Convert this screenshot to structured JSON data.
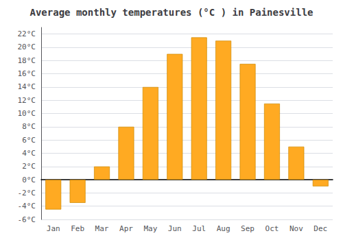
{
  "chart_data": {
    "type": "bar",
    "title": "Average monthly temperatures (°C ) in Painesville",
    "categories": [
      "Jan",
      "Feb",
      "Mar",
      "Apr",
      "May",
      "Jun",
      "Jul",
      "Aug",
      "Sep",
      "Oct",
      "Nov",
      "Dec"
    ],
    "values": [
      -4.5,
      -3.5,
      2.0,
      8.0,
      14.0,
      19.0,
      21.5,
      21.0,
      17.5,
      11.5,
      5.0,
      -1.0
    ],
    "color": "#FFAA22",
    "ylim": [
      -6,
      23
    ],
    "yticks": [
      {
        "value": -6,
        "label": "-6°C"
      },
      {
        "value": -4,
        "label": "-4°C"
      },
      {
        "value": -2,
        "label": "-2°C"
      },
      {
        "value": 0,
        "label": "0°C"
      },
      {
        "value": 2,
        "label": "2°C"
      },
      {
        "value": 4,
        "label": "4°C"
      },
      {
        "value": 6,
        "label": "6°C"
      },
      {
        "value": 8,
        "label": "8°C"
      },
      {
        "value": 10,
        "label": "10°C"
      },
      {
        "value": 12,
        "label": "12°C"
      },
      {
        "value": 14,
        "label": "14°C"
      },
      {
        "value": 16,
        "label": "16°C"
      },
      {
        "value": 18,
        "label": "18°C"
      },
      {
        "value": 20,
        "label": "20°C"
      },
      {
        "value": 22,
        "label": "22°C"
      }
    ],
    "grid": true
  }
}
